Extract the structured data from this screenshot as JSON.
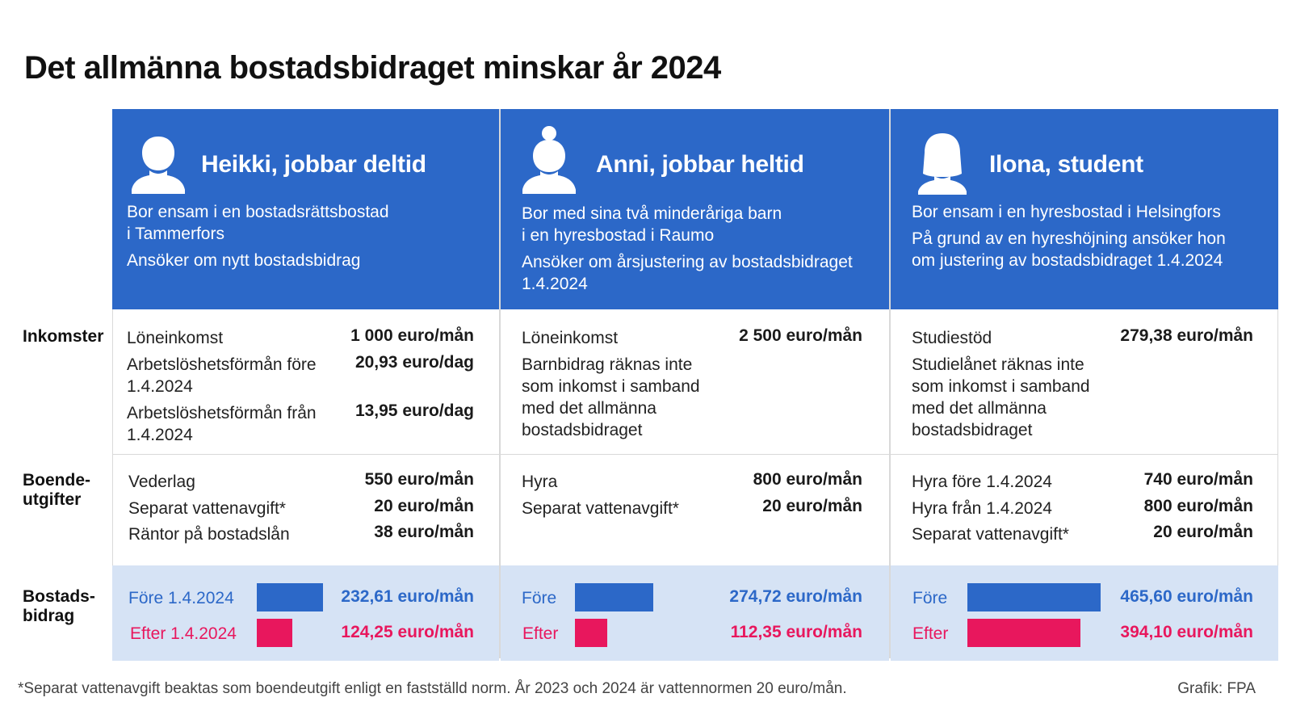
{
  "title": "Det allmänna bostadsbidraget minskar år 2024",
  "row_labels": {
    "income": "Inkomster",
    "housing_line1": "Boende-",
    "housing_line2": "utgifter",
    "benefit_line1": "Bostads-",
    "benefit_line2": "bidrag"
  },
  "colors": {
    "header_blue": "#2c68c8",
    "before_blue": "#2c68c8",
    "after_pink": "#e8175d",
    "benefit_bg": "#d6e3f5"
  },
  "persons": [
    {
      "icon": "person-short-hair-icon",
      "name": "Heikki, jobbar deltid",
      "desc": [
        "Bor ensam i en bostadsrättsbostad",
        "i Tammerfors",
        "Ansöker om nytt bostadsbidrag"
      ],
      "income": [
        {
          "label": "Löneinkomst",
          "value": "1 000 euro/mån"
        },
        {
          "label": "Arbetslöshetsförmån före",
          "label2": "1.4.2024",
          "value": "20,93 euro/dag"
        },
        {
          "label": "Arbetslöshetsförmån från",
          "label2": "1.4.2024",
          "value": "13,95 euro/dag"
        }
      ],
      "housing": [
        {
          "label": "Vederlag",
          "value": "550 euro/mån"
        },
        {
          "label": "Separat vattenavgift*",
          "value": "20 euro/mån"
        },
        {
          "label": "Räntor på bostadslån",
          "value": "38 euro/mån"
        }
      ],
      "benefit": {
        "before_label": "Före 1.4.2024",
        "before_value": "232,61 euro/mån",
        "before_amount": 232.61,
        "after_label": "Efter 1.4.2024",
        "after_value": "124,25 euro/mån",
        "after_amount": 124.25
      }
    },
    {
      "icon": "person-hair-bun-icon",
      "name": "Anni, jobbar heltid",
      "desc": [
        "Bor med sina två minderåriga barn",
        "i en hyresbostad i Raumo",
        "Ansöker om årsjustering av bostadsbidraget",
        "1.4.2024"
      ],
      "income": [
        {
          "label": "Löneinkomst",
          "value": "2 500 euro/mån"
        },
        {
          "label": "Barnbidrag räknas inte",
          "label2": "som inkomst i samband",
          "label3": "med det allmänna",
          "label4": "bostadsbidraget"
        }
      ],
      "housing": [
        {
          "label": "Hyra",
          "value": "800 euro/mån"
        },
        {
          "label": "Separat vattenavgift*",
          "value": "20 euro/mån"
        }
      ],
      "benefit": {
        "before_label": "Före",
        "before_value": "274,72 euro/mån",
        "before_amount": 274.72,
        "after_label": "Efter",
        "after_value": "112,35 euro/mån",
        "after_amount": 112.35
      }
    },
    {
      "icon": "person-long-hair-icon",
      "name": "Ilona, student",
      "desc": [
        "Bor ensam i en hyresbostad i Helsingfors",
        "På grund av en hyreshöjning ansöker hon",
        "om justering av bostadsbidraget 1.4.2024"
      ],
      "income": [
        {
          "label": "Studiestöd",
          "value": "279,38 euro/mån"
        },
        {
          "label": "Studielånet räknas inte",
          "label2": "som inkomst i samband",
          "label3": "med det allmänna",
          "label4": "bostadsbidraget"
        }
      ],
      "housing": [
        {
          "label": "Hyra före 1.4.2024",
          "value": "740 euro/mån"
        },
        {
          "label": "Hyra från 1.4.2024",
          "value": "800 euro/mån"
        },
        {
          "label": "Separat vattenavgift*",
          "value": "20 euro/mån"
        }
      ],
      "benefit": {
        "before_label": "Före",
        "before_value": "465,60 euro/mån",
        "before_amount": 465.6,
        "after_label": "Efter",
        "after_value": "394,10 euro/mån",
        "after_amount": 394.1
      }
    }
  ],
  "footnote": "*Separat vattenavgift beaktas som boendeutgift enligt en fastställd norm. År 2023 och 2024 är vattennormen 20 euro/mån.",
  "credit": "Grafik: FPA"
}
